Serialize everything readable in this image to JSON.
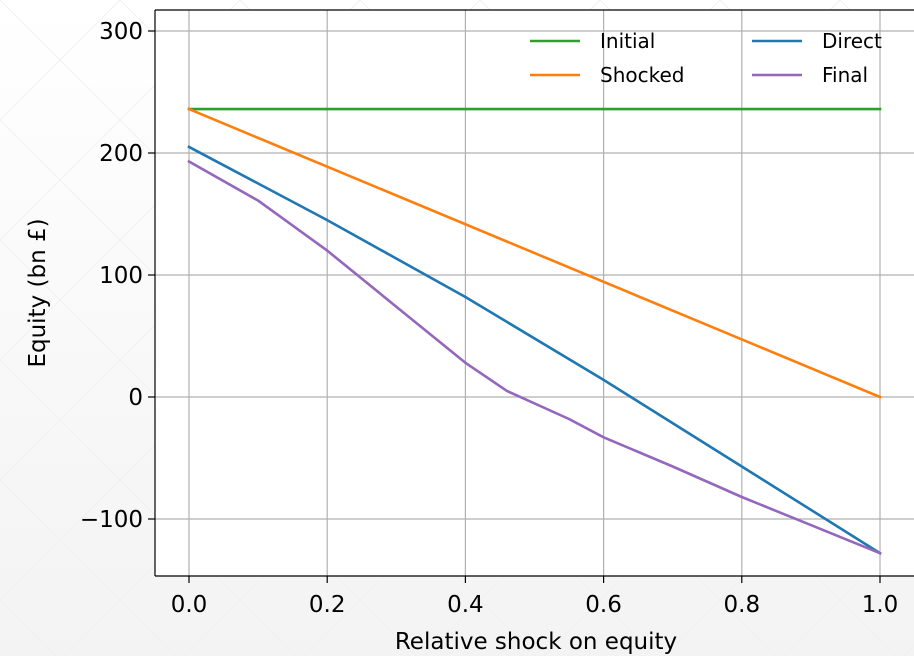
{
  "chart_data": {
    "type": "line",
    "xlabel": "Relative shock on equity",
    "ylabel": "Equity (bn £)",
    "xlim": [
      -0.05,
      1.05
    ],
    "ylim": [
      -145,
      318
    ],
    "x_ticks": [
      {
        "value": 0.0,
        "label": "0.0"
      },
      {
        "value": 0.2,
        "label": "0.2"
      },
      {
        "value": 0.4,
        "label": "0.4"
      },
      {
        "value": 0.6,
        "label": "0.6"
      },
      {
        "value": 0.8,
        "label": "0.8"
      },
      {
        "value": 1.0,
        "label": "1.0"
      }
    ],
    "y_ticks": [
      {
        "value": -100,
        "label": "−100"
      },
      {
        "value": 0,
        "label": "0"
      },
      {
        "value": 100,
        "label": "100"
      },
      {
        "value": 200,
        "label": "200"
      },
      {
        "value": 300,
        "label": "300"
      }
    ],
    "grid": true,
    "legend_position": "top-right",
    "legend_columns": 2,
    "series": [
      {
        "name": "Initial",
        "color": "#2ca02c",
        "points": [
          [
            0.0,
            236
          ],
          [
            1.0,
            236
          ]
        ]
      },
      {
        "name": "Shocked",
        "color": "#ff7f0e",
        "points": [
          [
            0.0,
            236
          ],
          [
            1.0,
            0
          ]
        ]
      },
      {
        "name": "Direct",
        "color": "#1f77b4",
        "points": [
          [
            0.0,
            205
          ],
          [
            0.2,
            145
          ],
          [
            0.4,
            82
          ],
          [
            0.6,
            14
          ],
          [
            0.8,
            -57
          ],
          [
            1.0,
            -128
          ]
        ]
      },
      {
        "name": "Final",
        "color": "#9467bd",
        "points": [
          [
            0.0,
            193
          ],
          [
            0.1,
            161
          ],
          [
            0.2,
            120
          ],
          [
            0.3,
            74
          ],
          [
            0.4,
            28
          ],
          [
            0.46,
            5
          ],
          [
            0.55,
            -18
          ],
          [
            0.6,
            -33
          ],
          [
            0.7,
            -57
          ],
          [
            0.8,
            -82
          ],
          [
            0.9,
            -105
          ],
          [
            1.0,
            -128
          ]
        ]
      }
    ]
  }
}
